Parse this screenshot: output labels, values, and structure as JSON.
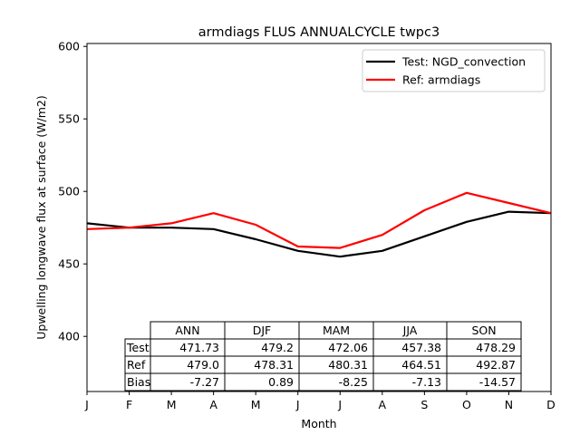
{
  "chart_data": {
    "type": "line",
    "title": "armdiags FLUS ANNUALCYCLE twpc3",
    "xlabel": "Month",
    "ylabel": "Upwelling longwave flux at surface (W/m2)",
    "categories": [
      "J",
      "F",
      "M",
      "A",
      "M",
      "J",
      "J",
      "A",
      "S",
      "O",
      "N",
      "D"
    ],
    "ylim": [
      362,
      602
    ],
    "yticks": [
      400,
      450,
      500,
      550,
      600
    ],
    "grid": false,
    "legend_position": "top-right",
    "series": [
      {
        "name": "Test: NGD_convection",
        "color": "#000000",
        "values": [
          478,
          475,
          475,
          474,
          467,
          459,
          455,
          459,
          469,
          479,
          486,
          485
        ]
      },
      {
        "name": "Ref: armdiags",
        "color": "#ff0000",
        "values": [
          474,
          475,
          478,
          485,
          477,
          462,
          461,
          470,
          487,
          499,
          492,
          485
        ]
      }
    ],
    "table": {
      "col_headers": [
        "ANN",
        "DJF",
        "MAM",
        "JJA",
        "SON"
      ],
      "rows": [
        {
          "label": "Test",
          "values": [
            "471.73",
            "479.2",
            "472.06",
            "457.38",
            "478.29"
          ]
        },
        {
          "label": "Ref",
          "values": [
            "479.0",
            "478.31",
            "480.31",
            "464.51",
            "492.87"
          ]
        },
        {
          "label": "Bias",
          "values": [
            "-7.27",
            "0.89",
            "-8.25",
            "-7.13",
            "-14.57"
          ]
        }
      ]
    }
  }
}
